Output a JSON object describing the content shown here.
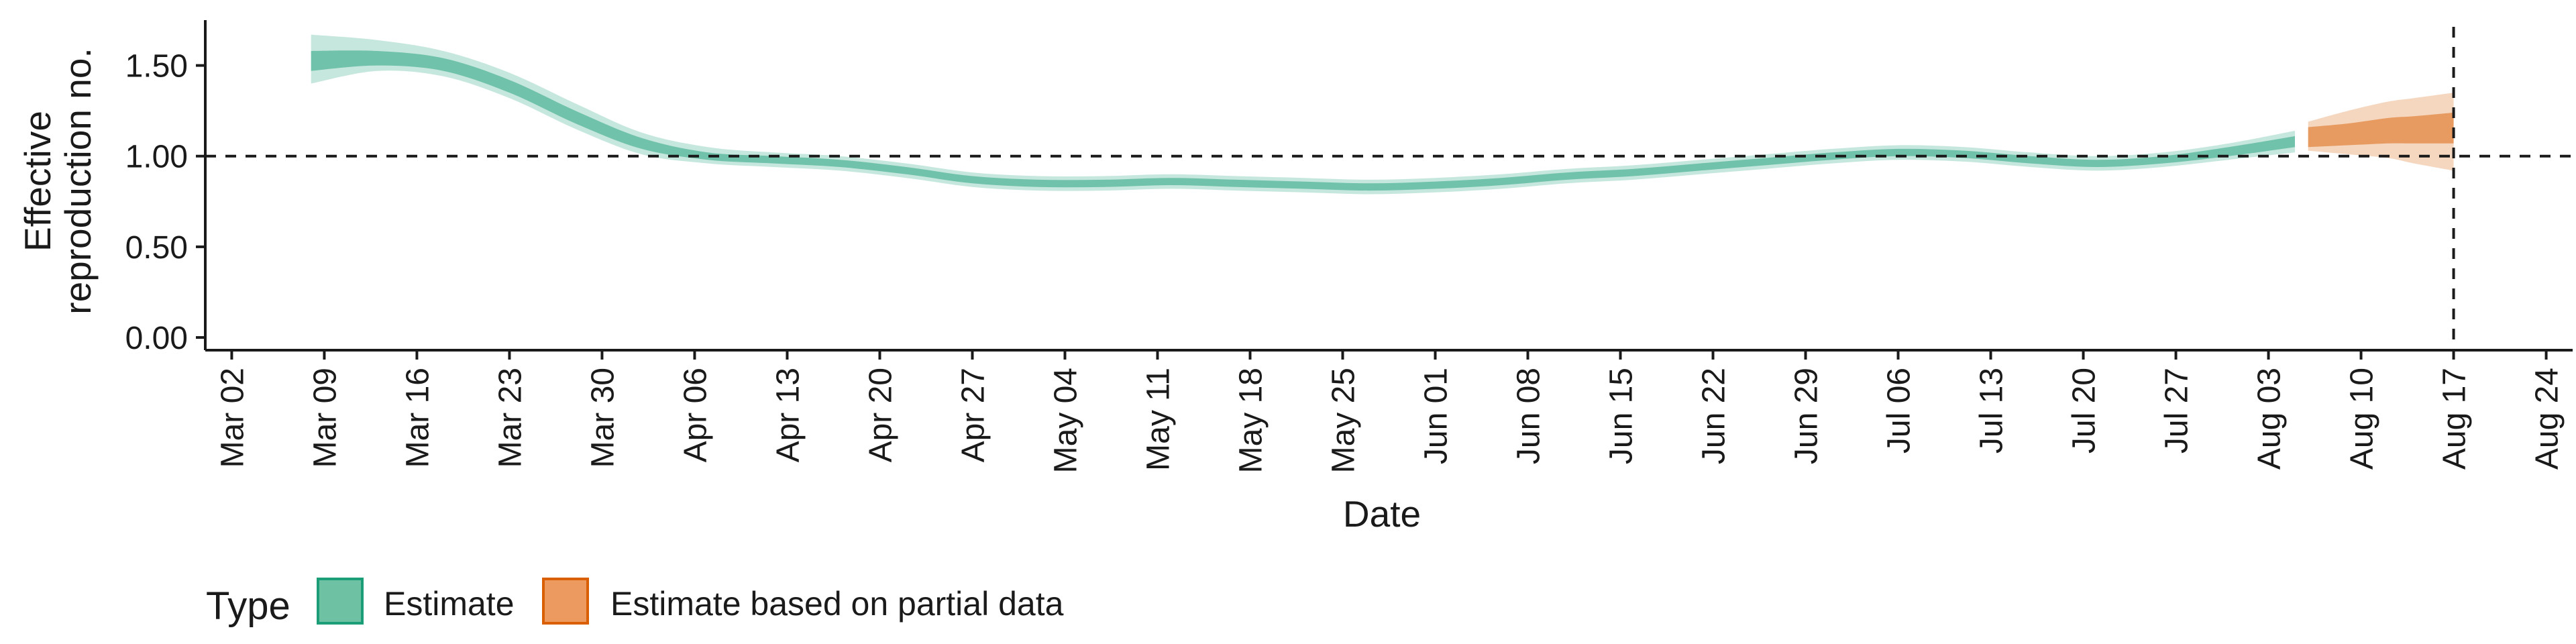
{
  "chart_data": {
    "type": "area",
    "xlabel": "Date",
    "ylabel_lines": [
      "Effective",
      "reproduction no."
    ],
    "x_ticks": [
      "Mar 02",
      "Mar 09",
      "Mar 16",
      "Mar 23",
      "Mar 30",
      "Apr 06",
      "Apr 13",
      "Apr 20",
      "Apr 27",
      "May 04",
      "May 11",
      "May 18",
      "May 25",
      "Jun 01",
      "Jun 08",
      "Jun 15",
      "Jun 22",
      "Jun 29",
      "Jul 06",
      "Jul 13",
      "Jul 20",
      "Jul 27",
      "Aug 03",
      "Aug 10",
      "Aug 17",
      "Aug 24"
    ],
    "xlim": [
      "2020-02-29",
      "2020-08-26"
    ],
    "y_ticks": [
      "0.00",
      "0.50",
      "1.00",
      "1.50"
    ],
    "ylim": [
      -0.07,
      1.75
    ],
    "reference_lines": {
      "hline_y": 1.0,
      "vline_x": "2020-08-17"
    },
    "legend": {
      "title": "Type",
      "position": "bottom-left",
      "items": [
        {
          "label": "Estimate",
          "fill": "#6ec1a3",
          "border": "#1b9e77"
        },
        {
          "label": "Estimate based on partial data",
          "fill": "#ec9a5f",
          "border": "#d95f02"
        }
      ]
    },
    "series": [
      {
        "name": "Estimate",
        "color": "#1b9e77",
        "x": [
          "2020-03-08",
          "2020-03-13",
          "2020-03-18",
          "2020-03-23",
          "2020-03-28",
          "2020-04-02",
          "2020-04-07",
          "2020-04-12",
          "2020-04-17",
          "2020-04-22",
          "2020-04-27",
          "2020-05-02",
          "2020-05-07",
          "2020-05-12",
          "2020-05-17",
          "2020-05-22",
          "2020-05-27",
          "2020-06-01",
          "2020-06-06",
          "2020-06-11",
          "2020-06-16",
          "2020-06-21",
          "2020-06-26",
          "2020-07-01",
          "2020-07-06",
          "2020-07-11",
          "2020-07-16",
          "2020-07-21",
          "2020-07-26",
          "2020-07-31",
          "2020-08-05"
        ],
        "median": [
          1.53,
          1.55,
          1.51,
          1.39,
          1.22,
          1.07,
          1.0,
          0.98,
          0.96,
          0.92,
          0.87,
          0.85,
          0.85,
          0.86,
          0.85,
          0.84,
          0.83,
          0.84,
          0.86,
          0.89,
          0.91,
          0.94,
          0.97,
          1.0,
          1.02,
          1.01,
          0.98,
          0.96,
          0.98,
          1.02,
          1.08
        ],
        "ci50_lower": [
          1.47,
          1.5,
          1.47,
          1.35,
          1.18,
          1.04,
          0.98,
          0.96,
          0.94,
          0.9,
          0.85,
          0.83,
          0.83,
          0.84,
          0.83,
          0.82,
          0.81,
          0.82,
          0.84,
          0.87,
          0.89,
          0.92,
          0.95,
          0.98,
          1.0,
          0.99,
          0.96,
          0.94,
          0.96,
          1.0,
          1.05
        ],
        "ci50_upper": [
          1.58,
          1.58,
          1.54,
          1.42,
          1.25,
          1.1,
          1.02,
          1.0,
          0.98,
          0.94,
          0.89,
          0.87,
          0.87,
          0.88,
          0.87,
          0.86,
          0.85,
          0.86,
          0.88,
          0.91,
          0.93,
          0.96,
          0.99,
          1.02,
          1.04,
          1.03,
          1.0,
          0.98,
          1.0,
          1.05,
          1.11
        ],
        "ci90_lower": [
          1.4,
          1.47,
          1.44,
          1.32,
          1.15,
          1.01,
          0.96,
          0.94,
          0.92,
          0.88,
          0.83,
          0.81,
          0.81,
          0.82,
          0.81,
          0.8,
          0.79,
          0.8,
          0.82,
          0.85,
          0.87,
          0.9,
          0.93,
          0.96,
          0.98,
          0.97,
          0.94,
          0.92,
          0.94,
          0.98,
          1.02
        ],
        "ci90_upper": [
          1.67,
          1.64,
          1.58,
          1.46,
          1.29,
          1.13,
          1.05,
          1.02,
          1.0,
          0.96,
          0.91,
          0.89,
          0.89,
          0.9,
          0.89,
          0.88,
          0.87,
          0.88,
          0.9,
          0.93,
          0.95,
          0.98,
          1.01,
          1.04,
          1.06,
          1.05,
          1.02,
          1.0,
          1.02,
          1.07,
          1.14
        ]
      },
      {
        "name": "Estimate based on partial data",
        "color": "#d95f02",
        "x": [
          "2020-08-06",
          "2020-08-09",
          "2020-08-12",
          "2020-08-14",
          "2020-08-17"
        ],
        "median": [
          1.11,
          1.13,
          1.15,
          1.16,
          1.17
        ],
        "ci50_lower": [
          1.05,
          1.06,
          1.07,
          1.07,
          1.07
        ],
        "ci50_upper": [
          1.16,
          1.18,
          1.21,
          1.22,
          1.24
        ],
        "ci90_lower": [
          1.03,
          1.01,
          0.99,
          0.96,
          0.92
        ],
        "ci90_upper": [
          1.19,
          1.25,
          1.3,
          1.32,
          1.35
        ]
      }
    ]
  }
}
